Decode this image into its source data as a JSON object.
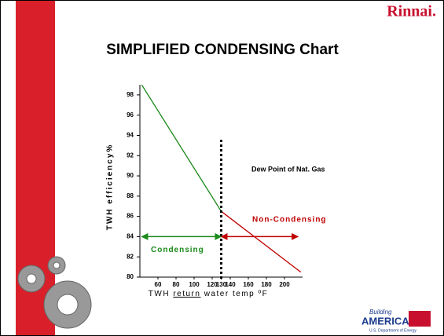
{
  "logo": "Rinnai.",
  "footer_logo": {
    "line1": "Building",
    "line2": "AMERICA",
    "line3": "U.S. Department of Energy"
  },
  "chart_data": {
    "type": "line",
    "title": "SIMPLIFIED CONDENSING Chart",
    "ylabel": "TWH efficiency%",
    "xlabel": [
      "TWH ",
      "return",
      " water temp ºF"
    ],
    "xlim": [
      40,
      220
    ],
    "ylim": [
      80,
      99
    ],
    "xticks": [
      60,
      80,
      100,
      120,
      130,
      140,
      160,
      180,
      200
    ],
    "yticks": [
      80,
      82,
      84,
      86,
      88,
      90,
      92,
      94,
      96,
      98
    ],
    "series": [
      {
        "name": "Condensing",
        "color": "#1a8a1a",
        "x": [
          42,
          130
        ],
        "values": [
          99,
          86.5
        ]
      },
      {
        "name": "Non-Condensing",
        "color": "#c00000",
        "x": [
          130,
          218
        ],
        "values": [
          86.5,
          80.5
        ]
      }
    ],
    "dew_point_x": 130,
    "dew_point_label": "Dew Point of Nat. Gas",
    "arrows": [
      {
        "label": "Condensing",
        "color": "#1a8a1a",
        "x1": 42,
        "x2": 130,
        "y": 84
      },
      {
        "label": "Non-Condensing",
        "color": "#c00000",
        "x1": 130,
        "x2": 215,
        "y": 84
      }
    ]
  }
}
